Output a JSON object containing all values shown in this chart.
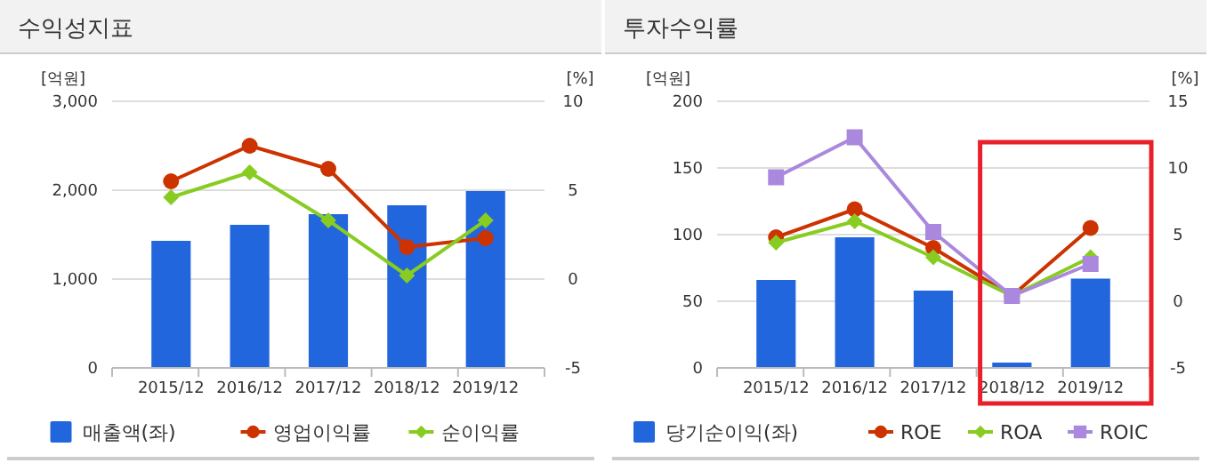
{
  "chart_data": [
    {
      "type": "bar",
      "title": "수익성지표",
      "categories": [
        "2015/12",
        "2016/12",
        "2017/12",
        "2018/12",
        "2019/12"
      ],
      "ylabel": "[억원]",
      "y2label": "[%]",
      "ylim": [
        0,
        3000
      ],
      "yticks": [
        0,
        {
          "value": 1000,
          "label": "1,000"
        },
        {
          "value": 2000,
          "label": "2,000"
        },
        {
          "value": 3000,
          "label": "3,000"
        }
      ],
      "y2lim": [
        -5,
        10
      ],
      "y2ticks": [
        -5,
        0,
        5,
        10
      ],
      "grid": "y",
      "legend": "bottom",
      "series": [
        {
          "name": "매출액(좌)",
          "color": "#2266dd",
          "values": [
            1430,
            1610,
            1730,
            1830,
            1990
          ]
        },
        {
          "name": "영업이익률",
          "type": "line",
          "axis": "y2",
          "marker": "circle",
          "color": "#cc3300",
          "values": [
            5.5,
            7.5,
            6.2,
            1.8,
            2.3
          ]
        },
        {
          "name": "순이익률",
          "type": "line",
          "axis": "y2",
          "marker": "diamond",
          "color": "#88cc22",
          "values": [
            4.6,
            6.0,
            3.3,
            0.2,
            3.3
          ]
        }
      ]
    },
    {
      "type": "bar",
      "title": "투자수익률",
      "categories": [
        "2015/12",
        "2016/12",
        "2017/12",
        "2018/12",
        "2019/12"
      ],
      "ylabel": "[억원]",
      "y2label": "[%]",
      "ylim": [
        0,
        200
      ],
      "yticks": [
        0,
        50,
        100,
        150,
        200
      ],
      "y2lim": [
        -5,
        15
      ],
      "y2ticks": [
        -5,
        0,
        5,
        10,
        15
      ],
      "grid": "y",
      "legend": "bottom",
      "series": [
        {
          "name": "당기순이익(좌)",
          "color": "#2266dd",
          "values": [
            66,
            98,
            58,
            4,
            67
          ]
        },
        {
          "name": "ROE",
          "type": "line",
          "axis": "y2",
          "marker": "circle",
          "color": "#cc3300",
          "values": [
            4.8,
            6.9,
            4.0,
            0.4,
            5.5
          ]
        },
        {
          "name": "ROA",
          "type": "line",
          "axis": "y2",
          "marker": "diamond",
          "color": "#88cc22",
          "values": [
            4.4,
            6.0,
            3.3,
            0.4,
            3.3
          ]
        },
        {
          "name": "ROIC",
          "type": "line",
          "axis": "y2",
          "marker": "square",
          "color": "#aa88dd",
          "values": [
            9.3,
            12.3,
            5.2,
            0.4,
            2.8
          ]
        }
      ]
    }
  ]
}
